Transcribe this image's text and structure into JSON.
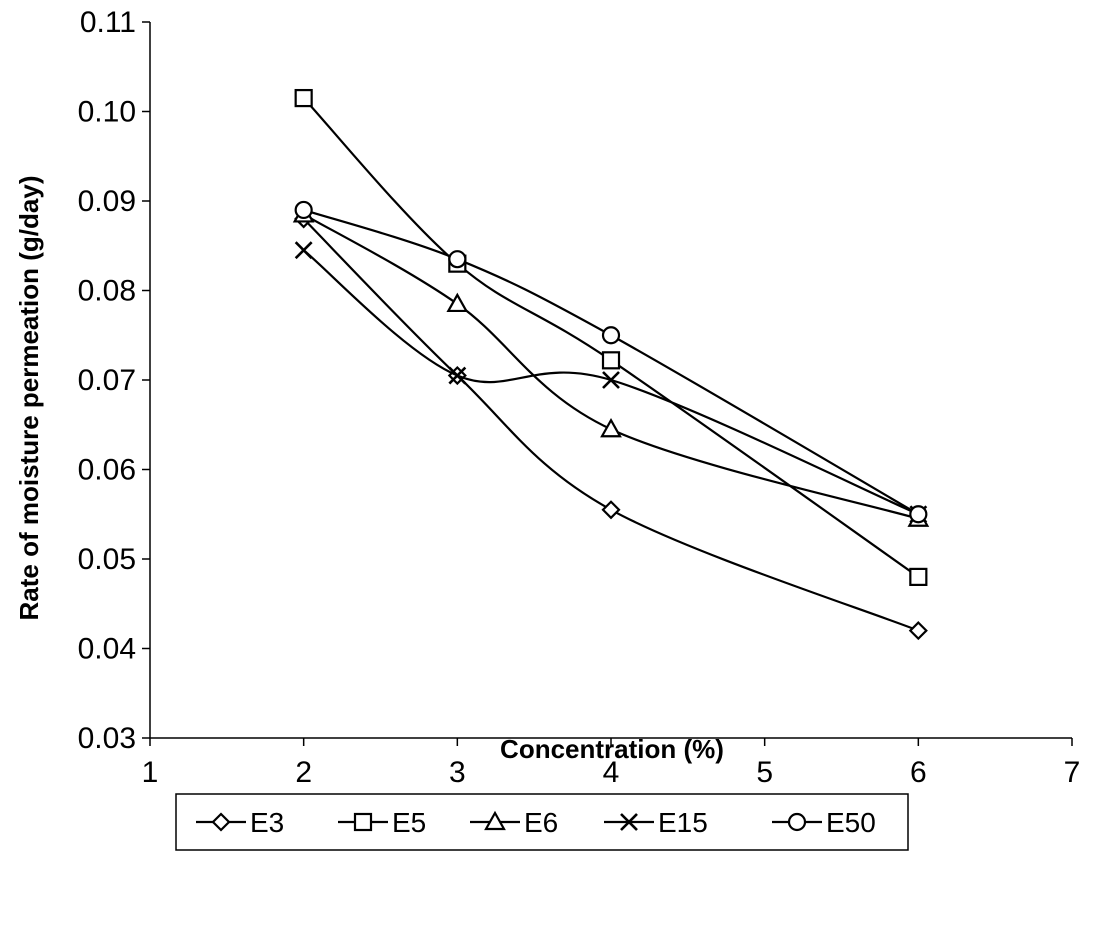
{
  "chart_data": {
    "type": "line",
    "title": "",
    "xlabel": "Concentration (%)",
    "ylabel": "Rate of moisture permeation (g/day)",
    "xlim": [
      1,
      7
    ],
    "ylim": [
      0.03,
      0.11
    ],
    "x_ticks": [
      "1",
      "2",
      "3",
      "4",
      "5",
      "6",
      "7"
    ],
    "y_ticks": [
      "0.03",
      "0.04",
      "0.05",
      "0.06",
      "0.07",
      "0.08",
      "0.09",
      "0.10",
      "0.11"
    ],
    "x": [
      2,
      3,
      4,
      6
    ],
    "smoothed": true,
    "grid": false,
    "legend_position": "bottom",
    "series": [
      {
        "name": "E3",
        "marker": "diamond",
        "values": [
          0.088,
          0.0705,
          0.0555,
          0.042
        ]
      },
      {
        "name": "E5",
        "marker": "square",
        "values": [
          0.1015,
          0.083,
          0.0722,
          0.048
        ]
      },
      {
        "name": "E6",
        "marker": "triangle",
        "values": [
          0.0885,
          0.0785,
          0.0645,
          0.0545
        ]
      },
      {
        "name": "E15",
        "marker": "x",
        "values": [
          0.0845,
          0.0705,
          0.07,
          0.055
        ]
      },
      {
        "name": "E50",
        "marker": "circle",
        "values": [
          0.089,
          0.0835,
          0.075,
          0.055
        ]
      }
    ]
  }
}
